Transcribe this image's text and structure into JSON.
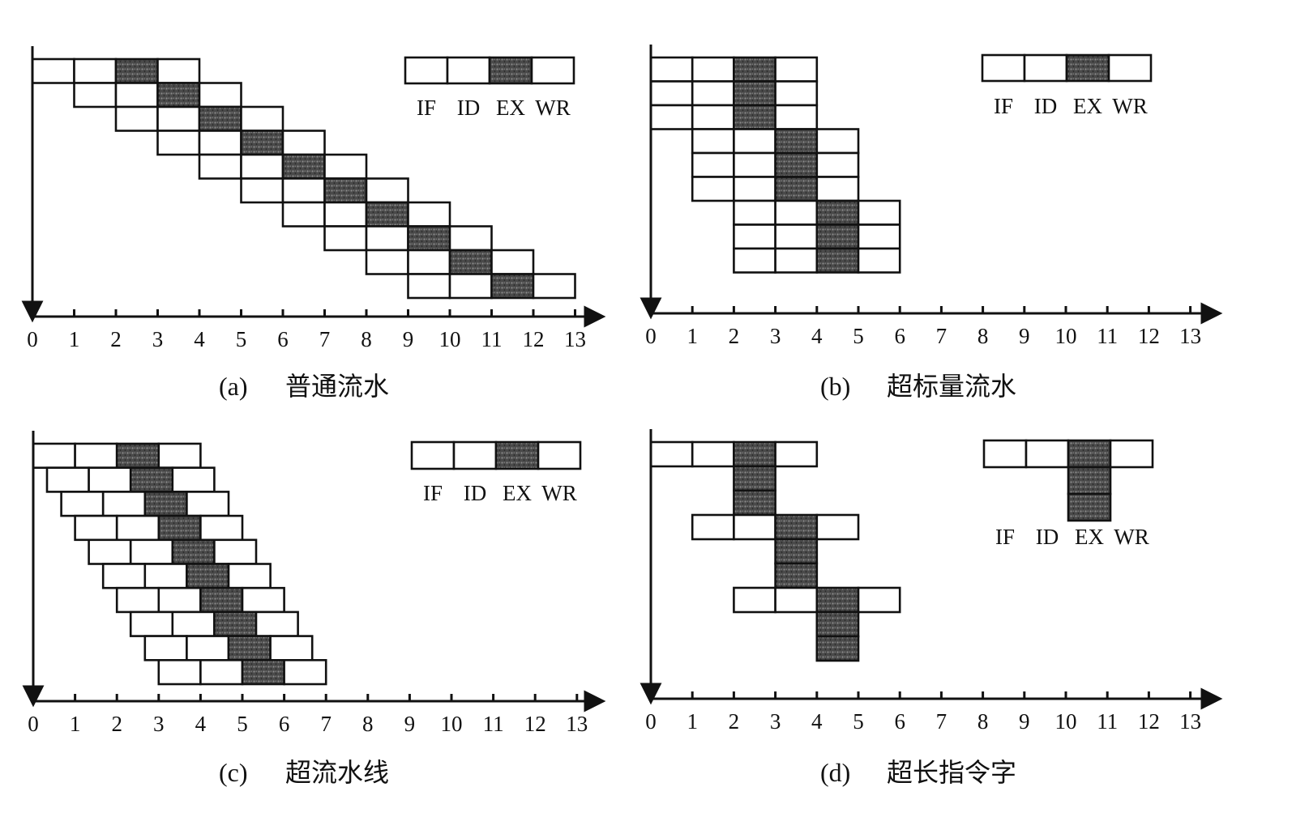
{
  "stage_labels": [
    "IF",
    "ID",
    "EX",
    "WR"
  ],
  "axis_ticks": [
    "0",
    "1",
    "2",
    "3",
    "4",
    "5",
    "6",
    "7",
    "8",
    "9",
    "10",
    "11",
    "12",
    "13"
  ],
  "colors": {
    "line": "#111111",
    "ex_fill": "#555555",
    "background": "#ffffff"
  },
  "panels": [
    {
      "id": "a",
      "caption_letter": "(a)",
      "caption_title": "普通流水",
      "instructions": [
        {
          "start": 0,
          "row": 0
        },
        {
          "start": 1,
          "row": 1
        },
        {
          "start": 2,
          "row": 2
        },
        {
          "start": 3,
          "row": 3
        },
        {
          "start": 4,
          "row": 4
        },
        {
          "start": 5,
          "row": 5
        },
        {
          "start": 6,
          "row": 6
        },
        {
          "start": 7,
          "row": 7
        },
        {
          "start": 8,
          "row": 8
        },
        {
          "start": 9,
          "row": 9
        }
      ],
      "legend": "row"
    },
    {
      "id": "b",
      "caption_letter": "(b)",
      "caption_title": "超标量流水",
      "instructions": [
        {
          "start": 0,
          "row": 0
        },
        {
          "start": 0,
          "row": 1
        },
        {
          "start": 0,
          "row": 2
        },
        {
          "start": 1,
          "row": 3
        },
        {
          "start": 1,
          "row": 4
        },
        {
          "start": 1,
          "row": 5
        },
        {
          "start": 2,
          "row": 6
        },
        {
          "start": 2,
          "row": 7
        },
        {
          "start": 2,
          "row": 8
        }
      ],
      "legend": "row"
    },
    {
      "id": "c",
      "caption_letter": "(c)",
      "caption_title": "超流水线",
      "instructions": [
        {
          "start": 0.0,
          "row": 0
        },
        {
          "start": 0.33,
          "row": 1
        },
        {
          "start": 0.67,
          "row": 2
        },
        {
          "start": 1.0,
          "row": 3
        },
        {
          "start": 1.33,
          "row": 4
        },
        {
          "start": 1.67,
          "row": 5
        },
        {
          "start": 2.0,
          "row": 6
        },
        {
          "start": 2.33,
          "row": 7
        },
        {
          "start": 2.67,
          "row": 8
        },
        {
          "start": 3.0,
          "row": 9
        }
      ],
      "legend": "row"
    },
    {
      "id": "d",
      "caption_letter": "(d)",
      "caption_title": "超长指令字",
      "vliw_groups": [
        {
          "start": 0,
          "width": 3
        },
        {
          "start": 1,
          "width": 3
        },
        {
          "start": 2,
          "width": 3
        }
      ],
      "legend": "vliw"
    }
  ]
}
